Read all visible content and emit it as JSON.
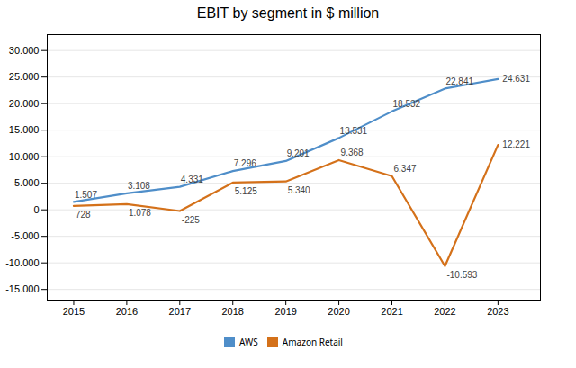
{
  "chart_data": {
    "type": "line",
    "title": "EBIT by segment in $ million",
    "x": [
      2015,
      2016,
      2017,
      2018,
      2019,
      2020,
      2021,
      2022,
      2023
    ],
    "series": [
      {
        "name": "AWS",
        "color": "#4f8ec9",
        "values": [
          1507,
          3108,
          4331,
          7296,
          9201,
          13531,
          18532,
          22841,
          24631
        ],
        "value_labels": [
          "1.507",
          "3.108",
          "4.331",
          "7.296",
          "9.201",
          "13.531",
          "18.532",
          "22.841",
          "24.631"
        ]
      },
      {
        "name": "Amazon Retail",
        "color": "#d4711a",
        "values": [
          728,
          1078,
          -225,
          5125,
          5340,
          9368,
          6347,
          -10593,
          12221
        ],
        "value_labels": [
          "728",
          "1.078",
          "-225",
          "5.125",
          "5.340",
          "9.368",
          "6.347",
          "-10.593",
          "12.221"
        ]
      }
    ],
    "xlim": [
      2014.5,
      2023.8
    ],
    "xticks": [
      2015,
      2016,
      2017,
      2018,
      2019,
      2020,
      2021,
      2022,
      2023
    ],
    "ylim": [
      -17000,
      33000
    ],
    "yticks": [
      {
        "value": -15000,
        "label": "-15.000"
      },
      {
        "value": -10000,
        "label": "-10.000"
      },
      {
        "value": -5000,
        "label": "-5.000"
      },
      0,
      {
        "value": 5000,
        "label": "5.000"
      },
      {
        "value": 10000,
        "label": "10.000"
      },
      {
        "value": 15000,
        "label": "15.000"
      },
      {
        "value": 20000,
        "label": "20.000"
      },
      {
        "value": 25000,
        "label": "25.000"
      },
      {
        "value": 30000,
        "label": "30.000"
      }
    ],
    "grid": "y",
    "legend": "bottom",
    "data_labels": true
  }
}
